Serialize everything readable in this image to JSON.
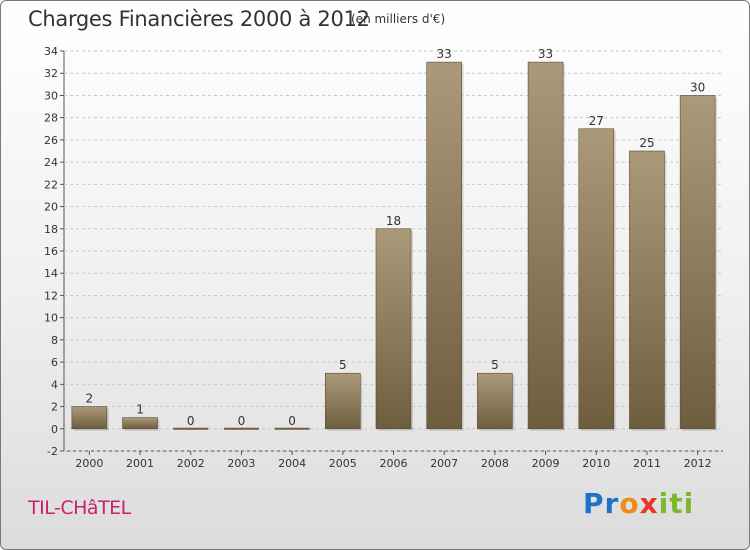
{
  "title": "Charges Financières 2000 à 2012",
  "unit": "(en milliers d'€)",
  "commune": "TIL-CHâTEL",
  "logo": {
    "p1": "Pr",
    "p2": "o",
    "p3": "x",
    "p4": "iti"
  },
  "colors": {
    "bar_top": "#ab9a7a",
    "bar_bottom": "#6e5d3f",
    "grid": "#c8c8c8",
    "commune": "#cc1f6e"
  },
  "chart_data": {
    "type": "bar",
    "categories": [
      "2000",
      "2001",
      "2002",
      "2003",
      "2004",
      "2005",
      "2006",
      "2007",
      "2008",
      "2009",
      "2010",
      "2011",
      "2012"
    ],
    "values": [
      2,
      1,
      0,
      0,
      0,
      5,
      18,
      33,
      5,
      33,
      27,
      25,
      30
    ],
    "data_labels": [
      "2",
      "1",
      "0",
      "0",
      "0",
      "5",
      "18",
      "33",
      "5",
      "33",
      "27",
      "25",
      "30"
    ],
    "title": "Charges Financières 2000 à 2012",
    "ylabel": "",
    "xlabel": "",
    "ylim": [
      -2,
      34
    ],
    "yticks": [
      -2,
      0,
      2,
      4,
      6,
      8,
      10,
      12,
      14,
      16,
      18,
      20,
      22,
      24,
      26,
      28,
      30,
      32,
      34
    ],
    "grid": "horizontal dashed"
  }
}
